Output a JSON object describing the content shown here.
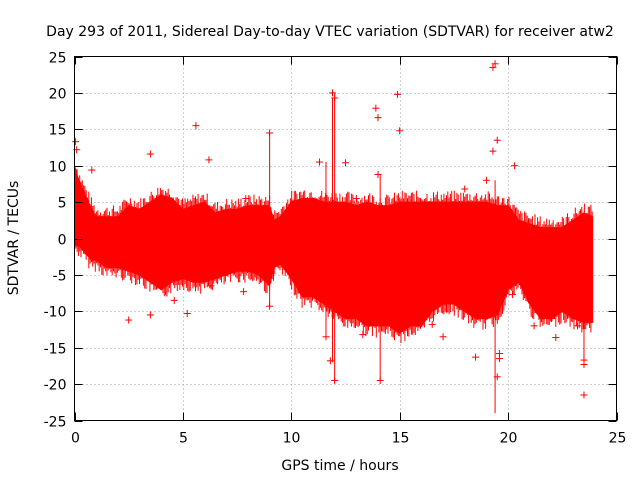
{
  "chart_data": {
    "type": "scatter",
    "title": "Day 293 of 2011, Sidereal Day-to-day VTEC variation (SDTVAR) for receiver atw2",
    "xlabel": "GPS time / hours",
    "ylabel": "SDTVAR / TECUs",
    "xlim": [
      0,
      25
    ],
    "ylim": [
      -25,
      25
    ],
    "xticks": [
      0,
      5,
      10,
      15,
      20,
      25
    ],
    "yticks": [
      -25,
      -20,
      -15,
      -10,
      -5,
      0,
      5,
      10,
      15,
      20,
      25
    ],
    "grid": true,
    "legend": "none",
    "series_color": "#ff0000",
    "marker": "plus",
    "envelope": {
      "x": [
        0.0,
        0.2,
        0.5,
        0.8,
        1.0,
        1.5,
        2.0,
        2.5,
        3.0,
        3.5,
        4.0,
        4.5,
        5.0,
        5.5,
        6.0,
        6.5,
        7.0,
        7.5,
        8.0,
        8.5,
        9.0,
        9.2,
        9.5,
        10.0,
        10.5,
        11.0,
        11.5,
        12.0,
        12.5,
        13.0,
        13.5,
        14.0,
        14.5,
        15.0,
        15.5,
        16.0,
        16.5,
        17.0,
        17.5,
        18.0,
        18.5,
        19.0,
        19.5,
        20.0,
        20.5,
        21.0,
        21.5,
        22.0,
        22.5,
        23.0,
        23.5,
        23.9
      ],
      "upper": [
        10,
        8,
        6,
        4,
        3,
        3,
        3,
        4.5,
        4,
        5,
        6,
        5.5,
        4,
        4.5,
        5,
        3.5,
        4,
        4,
        4.5,
        4.5,
        4.5,
        2.5,
        3,
        5,
        5.5,
        5.5,
        5,
        5,
        5,
        4.5,
        5,
        4.5,
        4.5,
        5,
        5,
        5,
        5,
        5,
        5,
        5,
        5,
        5,
        4.5,
        4.5,
        2.5,
        2,
        1.5,
        1.5,
        1.5,
        2.5,
        3.5,
        3
      ],
      "lower": [
        -1,
        -1,
        -2,
        -3,
        -3,
        -4,
        -4,
        -4.5,
        -5,
        -6,
        -7,
        -6,
        -5.5,
        -6,
        -6,
        -5.5,
        -5,
        -4.5,
        -4.5,
        -5,
        -6.5,
        -4,
        -3.5,
        -5.5,
        -8,
        -8,
        -9,
        -10,
        -11,
        -11,
        -12,
        -12,
        -12,
        -13,
        -12,
        -12,
        -10,
        -9,
        -9,
        -10,
        -11,
        -11,
        -10.5,
        -7,
        -6,
        -9,
        -11,
        -11,
        -10,
        -11,
        -11.5,
        -11.5
      ]
    },
    "outliers": [
      {
        "x": 0.05,
        "y": 13.3
      },
      {
        "x": 0.1,
        "y": 12.2
      },
      {
        "x": 0.8,
        "y": 9.4
      },
      {
        "x": 2.5,
        "y": -11.2
      },
      {
        "x": 3.5,
        "y": 11.6
      },
      {
        "x": 3.5,
        "y": -10.5
      },
      {
        "x": 4.6,
        "y": -8.5
      },
      {
        "x": 5.2,
        "y": -10.3
      },
      {
        "x": 5.6,
        "y": 15.5
      },
      {
        "x": 6.2,
        "y": 10.8
      },
      {
        "x": 6.3,
        "y": -6.5
      },
      {
        "x": 7.9,
        "y": 5.5
      },
      {
        "x": 7.8,
        "y": -7.3
      },
      {
        "x": 9.0,
        "y": 14.5
      },
      {
        "x": 9.0,
        "y": -9.3
      },
      {
        "x": 11.3,
        "y": 10.5
      },
      {
        "x": 11.6,
        "y": -13.5
      },
      {
        "x": 11.8,
        "y": -16.8
      },
      {
        "x": 11.9,
        "y": 20.0
      },
      {
        "x": 12.0,
        "y": 19.3
      },
      {
        "x": 12.0,
        "y": -19.5
      },
      {
        "x": 12.5,
        "y": 10.4
      },
      {
        "x": 13.0,
        "y": 5.5
      },
      {
        "x": 13.3,
        "y": -13.2
      },
      {
        "x": 13.9,
        "y": 17.9
      },
      {
        "x": 14.0,
        "y": 16.6
      },
      {
        "x": 14.0,
        "y": 8.8
      },
      {
        "x": 14.1,
        "y": -19.5
      },
      {
        "x": 14.9,
        "y": 19.8
      },
      {
        "x": 15.0,
        "y": 14.8
      },
      {
        "x": 16.5,
        "y": -11.8
      },
      {
        "x": 17.0,
        "y": -13.5
      },
      {
        "x": 18.0,
        "y": 6.8
      },
      {
        "x": 18.5,
        "y": -16.3
      },
      {
        "x": 19.0,
        "y": 8.0
      },
      {
        "x": 19.3,
        "y": 23.5
      },
      {
        "x": 19.4,
        "y": 24.0
      },
      {
        "x": 19.3,
        "y": 12.0
      },
      {
        "x": 19.5,
        "y": 13.5
      },
      {
        "x": 19.6,
        "y": -15.8
      },
      {
        "x": 19.6,
        "y": -16.5
      },
      {
        "x": 19.5,
        "y": -19.0
      },
      {
        "x": 20.3,
        "y": 10.0
      },
      {
        "x": 20.2,
        "y": -7.7
      },
      {
        "x": 21.2,
        "y": -12.0
      },
      {
        "x": 22.2,
        "y": -13.6
      },
      {
        "x": 22.0,
        "y": -11.0
      },
      {
        "x": 23.5,
        "y": -16.7
      },
      {
        "x": 23.5,
        "y": -17.3
      },
      {
        "x": 23.5,
        "y": -21.5
      },
      {
        "x": 23.2,
        "y": -12.0
      }
    ],
    "spikes": [
      {
        "x": 12.0,
        "y1": -19.5,
        "y2": 20.0
      },
      {
        "x": 11.9,
        "y1": -17.0,
        "y2": 19.3
      },
      {
        "x": 11.6,
        "y1": -13.5,
        "y2": 10.5
      },
      {
        "x": 14.1,
        "y1": -19.5,
        "y2": 8.8
      },
      {
        "x": 19.4,
        "y1": -24.0,
        "y2": 8.0
      },
      {
        "x": 9.0,
        "y1": -9.3,
        "y2": 14.5
      },
      {
        "x": 23.5,
        "y1": -17.3,
        "y2": 3.0
      }
    ]
  }
}
